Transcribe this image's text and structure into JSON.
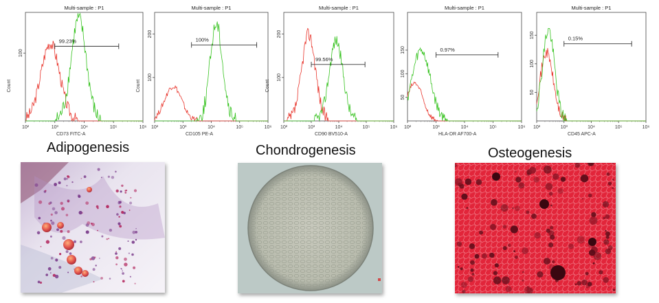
{
  "chart_data": [
    {
      "type": "histogram",
      "title": "Multi-sample : P1",
      "xlabel": "CD73 FITC-A",
      "ylabel": "Count",
      "x_scale": "log",
      "xlim": [
        100,
        1000000
      ],
      "x_ticks": [
        100,
        1000,
        10000,
        100000,
        1000000
      ],
      "y_ticks": [
        100
      ],
      "ylim": [
        0,
        160
      ],
      "gate": {
        "label": "99.23%",
        "from": 1000,
        "to": 150000,
        "y": 110
      },
      "series": [
        {
          "color": "#e8332a",
          "peak_x": 700,
          "peak_y": 115,
          "log_sigma": 0.32
        },
        {
          "color": "#35c21e",
          "peak_x": 6500,
          "peak_y": 150,
          "log_sigma": 0.26
        }
      ]
    },
    {
      "type": "histogram",
      "title": "Multi-sample : P1",
      "xlabel": "CD105 PE-A",
      "ylabel": "Count",
      "x_scale": "log",
      "xlim": [
        100,
        1000000
      ],
      "x_ticks": [
        100,
        1000,
        10000,
        100000,
        1000000
      ],
      "y_ticks": [
        100,
        200
      ],
      "ylim": [
        0,
        250
      ],
      "gate": {
        "label": "100%",
        "from": 2000,
        "to": 400000,
        "y": 175
      },
      "series": [
        {
          "color": "#e8332a",
          "peak_x": 450,
          "peak_y": 80,
          "log_sigma": 0.3
        },
        {
          "color": "#35c21e",
          "peak_x": 15000,
          "peak_y": 225,
          "log_sigma": 0.22
        }
      ]
    },
    {
      "type": "histogram",
      "title": "Multi-sample : P1",
      "xlabel": "CD90 BV510-A",
      "ylabel": "Count",
      "x_scale": "log",
      "xlim": [
        100,
        1000000
      ],
      "x_ticks": [
        100,
        1000,
        10000,
        100000,
        1000000
      ],
      "y_ticks": [
        100,
        200
      ],
      "ylim": [
        0,
        250
      ],
      "gate": {
        "label": "99.56%",
        "from": 1000,
        "to": 90000,
        "y": 130
      },
      "series": [
        {
          "color": "#e8332a",
          "peak_x": 800,
          "peak_y": 200,
          "log_sigma": 0.25
        },
        {
          "color": "#35c21e",
          "peak_x": 8000,
          "peak_y": 185,
          "log_sigma": 0.25
        }
      ]
    },
    {
      "type": "histogram",
      "title": "Multi-sample : P1",
      "xlabel": "HLA-DR AF700-A",
      "ylabel": "",
      "x_scale": "log",
      "xlim": [
        100,
        1000000
      ],
      "x_ticks": [
        100,
        1000,
        10000,
        100000,
        1000000
      ],
      "y_ticks": [
        50,
        100,
        150
      ],
      "ylim": [
        0,
        230
      ],
      "gate": {
        "label": "0.97%",
        "from": 1000,
        "to": 150000,
        "y": 140
      },
      "series": [
        {
          "color": "#e8332a",
          "peak_x": 180,
          "peak_y": 80,
          "log_sigma": 0.28
        },
        {
          "color": "#35c21e",
          "peak_x": 300,
          "peak_y": 150,
          "log_sigma": 0.32
        }
      ]
    },
    {
      "type": "histogram",
      "title": "Multi-sample : P1",
      "xlabel": "CD45 APC-A",
      "ylabel": "",
      "x_scale": "log",
      "xlim": [
        100,
        1000000
      ],
      "x_ticks": [
        100,
        1000,
        10000,
        100000,
        1000000
      ],
      "y_ticks": [
        50,
        100,
        150
      ],
      "ylim": [
        0,
        190
      ],
      "gate": {
        "label": "0.15%",
        "from": 1000,
        "to": 300000,
        "y": 135
      },
      "series": [
        {
          "color": "#e8332a",
          "peak_x": 230,
          "peak_y": 120,
          "log_sigma": 0.24
        },
        {
          "color": "#35c21e",
          "peak_x": 270,
          "peak_y": 160,
          "log_sigma": 0.22
        }
      ]
    }
  ],
  "panels": {
    "adipogenesis": {
      "title": "Adipogenesis"
    },
    "chondrogenesis": {
      "title": "Chondrogenesis"
    },
    "osteogenesis": {
      "title": "Osteogenesis"
    }
  }
}
